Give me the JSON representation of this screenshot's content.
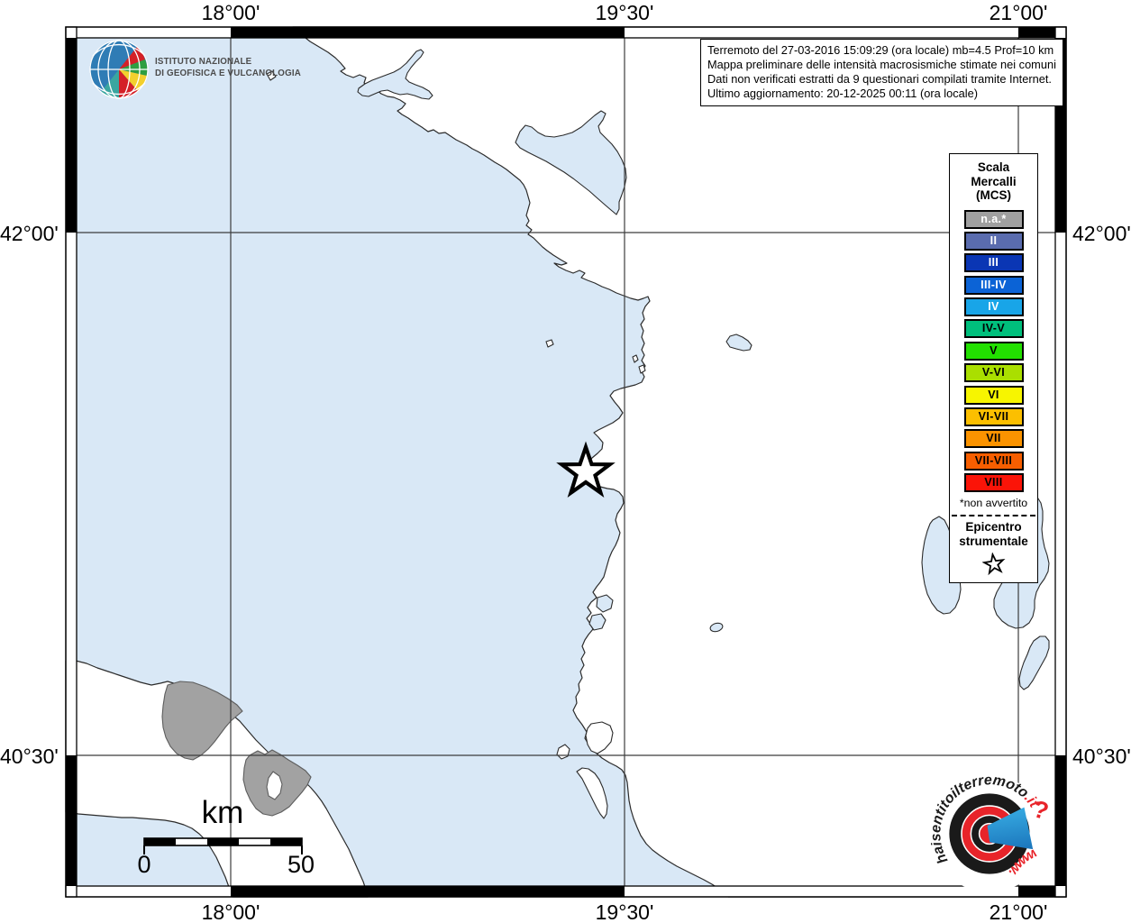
{
  "map": {
    "sea_color": "#d9e8f6",
    "land_color": "#ffffff",
    "municipality_color": "#a2a2a2",
    "grid_labels": {
      "top": [
        "18°00'",
        "19°30'",
        "21°00'"
      ],
      "bottom": [
        "18°00'",
        "19°30'",
        "21°00'"
      ],
      "left": [
        "42°00'",
        "40°30'"
      ],
      "right": [
        "42°00'",
        "40°30'"
      ]
    }
  },
  "header_logo": {
    "line1": "ISTITUTO NAZIONALE",
    "line2": "DI GEOFISICA E VULCANOLOGIA"
  },
  "info_box": {
    "lines": [
      "Terremoto del 27-03-2016 15:09:29 (ora locale) mb=4.5 Prof=10 km",
      "Mappa preliminare delle intensità macrosismiche stimate nei comuni",
      "Dati non verificati estratti da 9 questionari compilati tramite Internet.",
      "Ultimo aggiornamento: 20-12-2025 00:11 (ora locale)"
    ]
  },
  "legend": {
    "title_lines": [
      "Scala",
      "Mercalli",
      "(MCS)"
    ],
    "items": [
      {
        "label": "n.a.*",
        "color": "#a0a0a0",
        "text": "#ffffff"
      },
      {
        "label": "II",
        "color": "#5a6cae",
        "text": "#ffffff"
      },
      {
        "label": "III",
        "color": "#0a36b4",
        "text": "#ffffff"
      },
      {
        "label": "III-IV",
        "color": "#0b63d6",
        "text": "#ffffff"
      },
      {
        "label": "IV",
        "color": "#18a5e8",
        "text": "#ffffff"
      },
      {
        "label": "IV-V",
        "color": "#00bf7c",
        "text": "#000000"
      },
      {
        "label": "V",
        "color": "#22e000",
        "text": "#000000"
      },
      {
        "label": "V-VI",
        "color": "#aadf00",
        "text": "#000000"
      },
      {
        "label": "VI",
        "color": "#f7f500",
        "text": "#000000"
      },
      {
        "label": "VI-VII",
        "color": "#fcbf00",
        "text": "#000000"
      },
      {
        "label": "VII",
        "color": "#fb9300",
        "text": "#000000"
      },
      {
        "label": "VII-VIII",
        "color": "#f75e00",
        "text": "#000000"
      },
      {
        "label": "VIII",
        "color": "#fb1408",
        "text": "#000000"
      }
    ],
    "footnote": "*non avvertito",
    "epicenter_lines": [
      "Epicentro",
      "strumentale"
    ]
  },
  "scale_bar": {
    "unit": "km",
    "start_label": "0",
    "end_label": "50"
  },
  "footer_logo": {
    "text_main": "haisentitoilterremoto",
    "text_it": ".it",
    "text_www": "www.",
    "question_mark": "?"
  }
}
